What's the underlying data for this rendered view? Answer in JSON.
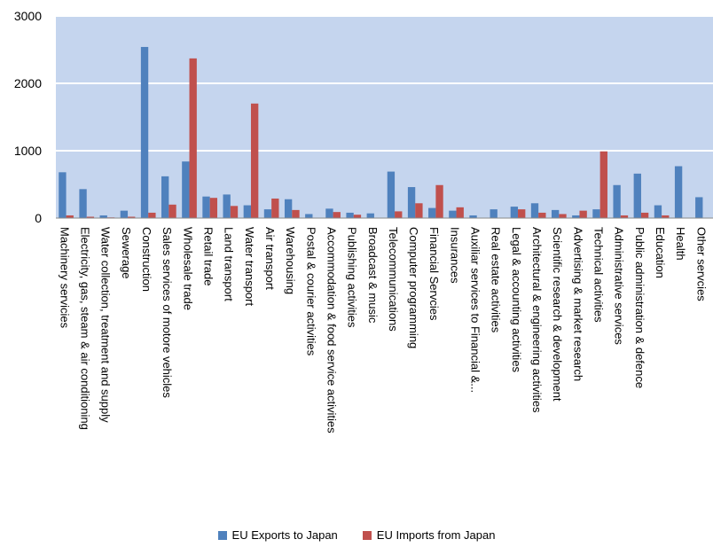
{
  "chart_data": {
    "type": "bar",
    "categories": [
      "Machinery servicies",
      "Electricity, gas, steam & air conditioning",
      "Water collection, treatment and supply",
      "Sewerage",
      "Construction",
      "Sales services of motore vehicles",
      "Wholesale trade",
      "Retail trade",
      "Land transport",
      "Water transport",
      "Air transport",
      "Warehousing",
      "Postal & courier activities",
      "Accommodation & food service activities",
      "Publishing activities",
      "Broadcast & music",
      "Telecommunications",
      "Computer programming",
      "Financial Servcies",
      "Insurances",
      "Auxiliar services to Financial &...",
      "Real estate activities",
      "Legal & accounting activities",
      "Architectural & engineering activities",
      "Scientific research & development",
      "Advertising & market research",
      "Technical activities",
      "Administrative services",
      "Public administration & defence",
      "Education",
      "Health",
      "Other servcies"
    ],
    "series": [
      {
        "name": "EU Exports to Japan",
        "color": "#4f81bd",
        "values": [
          680,
          430,
          40,
          110,
          2540,
          620,
          840,
          320,
          350,
          190,
          130,
          280,
          60,
          140,
          80,
          70,
          690,
          460,
          150,
          110,
          40,
          130,
          170,
          220,
          120,
          40,
          130,
          490,
          660,
          190,
          770,
          310
        ]
      },
      {
        "name": "EU Imports from Japan",
        "color": "#c0504d",
        "values": [
          40,
          20,
          10,
          20,
          80,
          200,
          2370,
          300,
          180,
          1700,
          290,
          120,
          0,
          90,
          50,
          0,
          100,
          220,
          490,
          160,
          0,
          0,
          130,
          80,
          60,
          110,
          990,
          40,
          80,
          40,
          0,
          0
        ]
      }
    ],
    "yticks": [
      0,
      1000,
      2000,
      3000
    ],
    "ylim": [
      0,
      3000
    ],
    "legend_position": "bottom",
    "plot_background": "#c5d5ee",
    "gridlines": true
  }
}
